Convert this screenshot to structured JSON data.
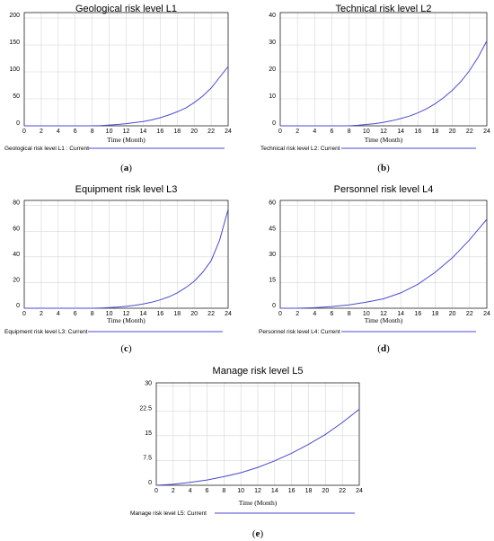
{
  "chart_data": [
    {
      "type": "line",
      "title": "Geological risk level L1",
      "xlabel": "Time (Month)",
      "ylabel": "",
      "xlim": [
        0,
        24
      ],
      "ylim": [
        0,
        210
      ],
      "xticks": [
        "0",
        "2",
        "4",
        "6",
        "8",
        "10",
        "12",
        "14",
        "16",
        "18",
        "20",
        "22",
        "24"
      ],
      "yticks": [
        "200",
        "150",
        "100",
        "50",
        "0"
      ],
      "x": [
        0,
        2,
        4,
        6,
        8,
        9,
        10,
        11,
        12,
        13,
        14,
        15,
        16,
        17,
        18,
        19,
        20,
        21,
        22,
        23,
        24
      ],
      "series": [
        {
          "name": "Geological risk level L1 : Current",
          "values": [
            0,
            0,
            0,
            0,
            0,
            0.5,
            1.5,
            2.5,
            4,
            6,
            8,
            11,
            15,
            20,
            26,
            33,
            43,
            55,
            70,
            90,
            110
          ]
        }
      ],
      "caption": "(a)",
      "grid": true
    },
    {
      "type": "line",
      "title": "Technical risk level L2",
      "xlabel": "Time (Month)",
      "ylabel": "",
      "xlim": [
        0,
        24
      ],
      "ylim": [
        0,
        42
      ],
      "xticks": [
        "0",
        "2",
        "4",
        "6",
        "8",
        "10",
        "12",
        "14",
        "16",
        "18",
        "20",
        "22",
        "24"
      ],
      "yticks": [
        "40",
        "30",
        "20",
        "10",
        "0"
      ],
      "x": [
        0,
        2,
        4,
        6,
        8,
        9,
        10,
        11,
        12,
        13,
        14,
        15,
        16,
        17,
        18,
        19,
        20,
        21,
        22,
        23,
        24
      ],
      "series": [
        {
          "name": "Technical risk level L2: Current",
          "values": [
            0,
            0,
            0,
            0,
            0,
            0.2,
            0.5,
            0.8,
            1.3,
            1.9,
            2.7,
            3.6,
            4.8,
            6.3,
            8.2,
            10.5,
            13.2,
            16.5,
            20.5,
            25.5,
            31.5
          ]
        }
      ],
      "caption": "(b)",
      "grid": true
    },
    {
      "type": "line",
      "title": "Equipment risk level L3",
      "xlabel": "Time (Month)",
      "ylabel": "",
      "xlim": [
        0,
        24
      ],
      "ylim": [
        0,
        84
      ],
      "xticks": [
        "0",
        "2",
        "4",
        "6",
        "8",
        "10",
        "12",
        "14",
        "16",
        "18",
        "20",
        "22",
        "24"
      ],
      "yticks": [
        "80",
        "60",
        "40",
        "20",
        "0"
      ],
      "x": [
        0,
        2,
        4,
        6,
        8,
        9,
        10,
        11,
        12,
        13,
        14,
        15,
        16,
        17,
        18,
        19,
        20,
        21,
        22,
        23,
        24
      ],
      "series": [
        {
          "name": "Equipment risk level L3: Current",
          "values": [
            0,
            0,
            0,
            0,
            0,
            0.2,
            0.5,
            0.9,
            1.5,
            2.3,
            3.3,
            4.7,
            6.5,
            8.8,
            12,
            16,
            21,
            28,
            37,
            53,
            77
          ]
        }
      ],
      "caption": "(c)",
      "grid": true
    },
    {
      "type": "line",
      "title": "Personnel risk level L4",
      "xlabel": "Time (Month)",
      "ylabel": "",
      "xlim": [
        0,
        24
      ],
      "ylim": [
        0,
        63
      ],
      "xticks": [
        "0",
        "2",
        "4",
        "6",
        "8",
        "10",
        "12",
        "14",
        "16",
        "18",
        "20",
        "22",
        "24"
      ],
      "yticks": [
        "60",
        "45",
        "30",
        "15",
        "0"
      ],
      "x": [
        0,
        2,
        4,
        6,
        8,
        10,
        12,
        14,
        16,
        18,
        20,
        22,
        24
      ],
      "series": [
        {
          "name": "Personnel risk level L4:  Current",
          "values": [
            0,
            0,
            0.3,
            1,
            2,
            3.5,
            5.5,
            9,
            14,
            21,
            29.5,
            40,
            52
          ]
        }
      ],
      "caption": "(d)",
      "grid": true
    },
    {
      "type": "line",
      "title": "Manage risk level L5",
      "xlabel": "Time (Month)",
      "ylabel": "",
      "xlim": [
        0,
        24
      ],
      "ylim": [
        0,
        31
      ],
      "xticks": [
        "0",
        "2",
        "4",
        "6",
        "8",
        "10",
        "12",
        "14",
        "16",
        "18",
        "20",
        "22",
        "24"
      ],
      "yticks": [
        "30",
        "22.5",
        "15",
        "7.5",
        "0"
      ],
      "x": [
        0,
        2,
        4,
        6,
        8,
        10,
        12,
        14,
        16,
        18,
        20,
        22,
        24
      ],
      "series": [
        {
          "name": "Manage risk level L5:  Current",
          "values": [
            0,
            0.3,
            0.9,
            1.6,
            2.6,
            3.8,
            5.4,
            7.4,
            9.7,
            12.4,
            15.4,
            19,
            23
          ]
        }
      ],
      "caption": "(e)",
      "grid": true
    }
  ]
}
